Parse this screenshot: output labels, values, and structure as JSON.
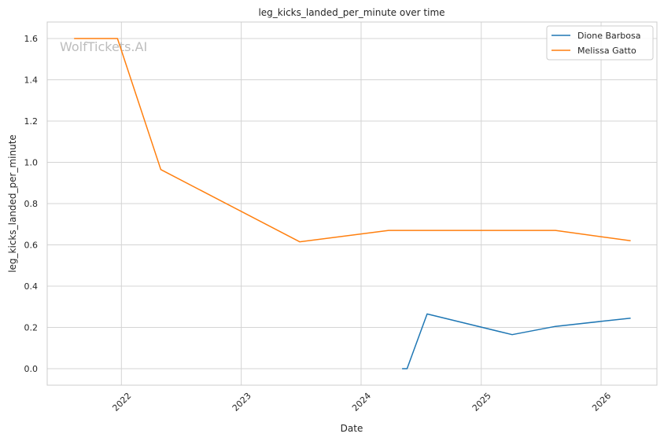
{
  "chart_data": {
    "type": "line",
    "title": "leg_kicks_landed_per_minute over time",
    "xlabel": "Date",
    "ylabel": "leg_kicks_landed_per_minute",
    "watermark": "WolfTickets.AI",
    "xlim": [
      "2021-05-20",
      "2026-06-20"
    ],
    "ylim": [
      -0.08,
      1.68
    ],
    "x_ticks": [
      "2022-01-01",
      "2023-01-01",
      "2024-01-01",
      "2025-01-01",
      "2026-01-01"
    ],
    "x_tick_labels": [
      "2022",
      "2023",
      "2024",
      "2025",
      "2026"
    ],
    "y_ticks": [
      0.0,
      0.2,
      0.4,
      0.6,
      0.8,
      1.0,
      1.2,
      1.4,
      1.6
    ],
    "y_tick_labels": [
      "0.0",
      "0.2",
      "0.4",
      "0.6",
      "0.8",
      "1.0",
      "1.2",
      "1.4",
      "1.6"
    ],
    "grid": true,
    "legend_position": "top-right",
    "series": [
      {
        "name": "Dione Barbosa",
        "color": "#1f77b4",
        "points": [
          {
            "x": "2024-05-05",
            "y": 0.0
          },
          {
            "x": "2024-05-20",
            "y": 0.0
          },
          {
            "x": "2024-07-20",
            "y": 0.265
          },
          {
            "x": "2025-04-05",
            "y": 0.165
          },
          {
            "x": "2025-08-15",
            "y": 0.205
          },
          {
            "x": "2026-04-01",
            "y": 0.245
          }
        ]
      },
      {
        "name": "Melissa Gatto",
        "color": "#ff7f0e",
        "points": [
          {
            "x": "2021-08-10",
            "y": 1.6
          },
          {
            "x": "2021-12-20",
            "y": 1.6
          },
          {
            "x": "2022-05-01",
            "y": 0.965
          },
          {
            "x": "2023-06-28",
            "y": 0.615
          },
          {
            "x": "2024-03-25",
            "y": 0.67
          },
          {
            "x": "2025-08-15",
            "y": 0.67
          },
          {
            "x": "2026-04-01",
            "y": 0.62
          }
        ]
      }
    ]
  }
}
